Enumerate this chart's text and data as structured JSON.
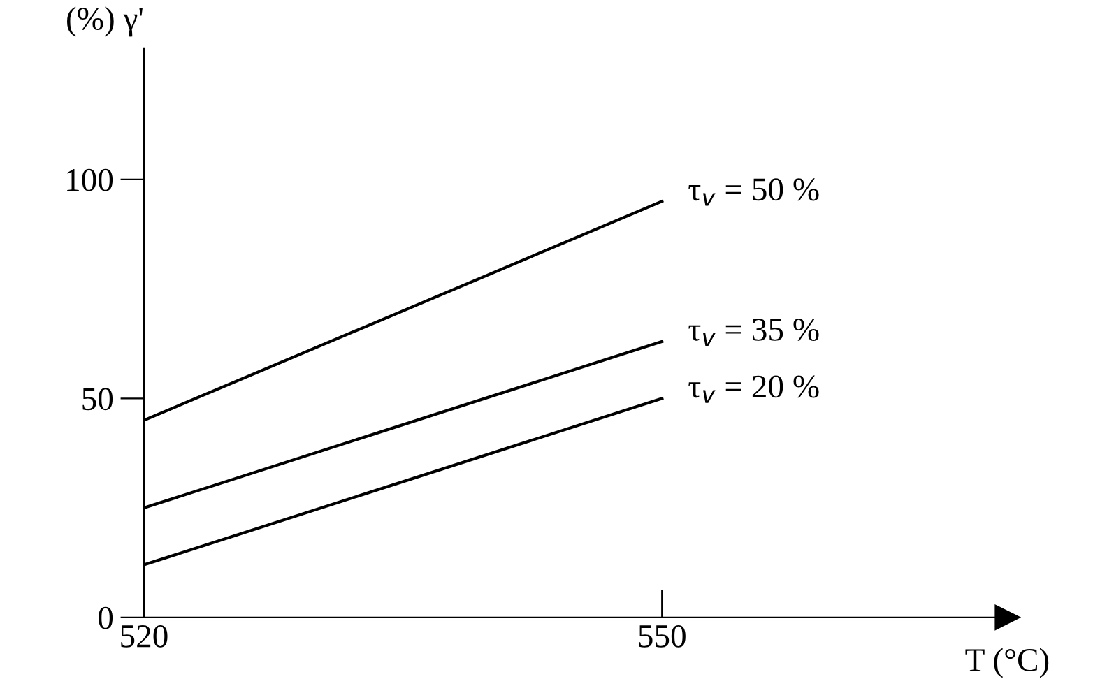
{
  "chart_data": {
    "type": "line",
    "xlabel": "T (°C)",
    "ylabel": "(%) γ'",
    "x": [
      520,
      550
    ],
    "series": [
      {
        "name": "τ$_{v}$ = 50 %",
        "color": "#000000",
        "values": [
          45,
          95
        ]
      },
      {
        "name": "τ$_{v}$ = 35 %",
        "color": "#000000",
        "values": [
          25,
          63
        ]
      },
      {
        "name": "τ$_{v}$ = 20 %",
        "color": "#000000",
        "values": [
          12,
          50
        ]
      }
    ],
    "xlim": [
      520,
      570
    ],
    "ylim": [
      0,
      130
    ],
    "xticks": [
      520,
      550
    ],
    "yticks": [
      0,
      50,
      100
    ],
    "grid": false,
    "legend": false,
    "marker": "none",
    "line_style": "solid"
  }
}
